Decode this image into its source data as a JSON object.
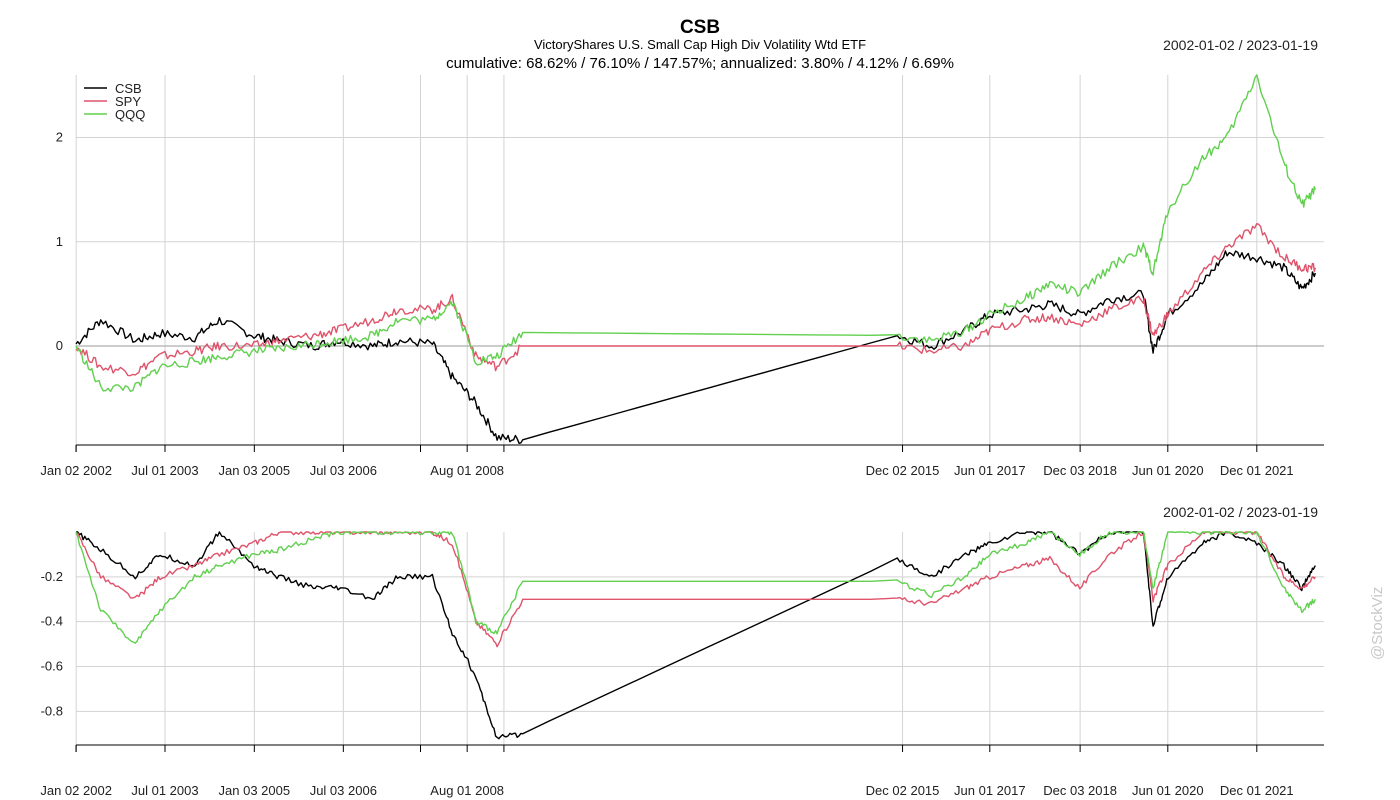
{
  "header": {
    "title": "CSB",
    "subtitle": "VictoryShares U.S. Small Cap High Div Volatility Wtd ETF",
    "stats": "cumulative: 68.62% / 76.10% / 147.57%; annualized: 3.80% / 4.12% / 6.69%",
    "date_range_top": "2002-01-02 / 2023-01-19",
    "date_range_bottom": "2002-01-02 / 2023-01-19"
  },
  "watermark": "@StockViz",
  "colors": {
    "CSB": "#000000",
    "SPY": "#df536b",
    "QQQ": "#61d04f",
    "grid": "#d3d3d3",
    "zero": "#9a9a9a"
  },
  "chart_data": [
    {
      "type": "line",
      "title": "CSB",
      "ylim": [
        -0.95,
        2.6
      ],
      "yticks": [
        0,
        1,
        2
      ],
      "grid": true,
      "legend_position": "top-left",
      "xtick_labels": [
        "Jan 02 2002",
        "Jul 01 2003",
        "Jan 03 2005",
        "Jul 03 2006",
        "Aug 01 2008",
        "Dec 02 2015",
        "Jun 01 2017",
        "Dec 03 2018",
        "Jun 01 2020",
        "Dec 01 2021"
      ],
      "x": [
        "2002-01",
        "2002-06",
        "2003-01",
        "2003-06",
        "2004-01",
        "2004-06",
        "2005-01",
        "2005-06",
        "2006-01",
        "2006-06",
        "2007-01",
        "2007-06",
        "2008-01",
        "2008-05",
        "2008-10",
        "2009-03",
        "2009-09",
        "2015-11",
        "2016-06",
        "2017-01",
        "2017-06",
        "2018-01",
        "2018-06",
        "2018-12",
        "2019-06",
        "2020-01",
        "2020-03",
        "2020-06",
        "2021-01",
        "2021-06",
        "2021-12",
        "2022-06",
        "2022-10",
        "2023-01"
      ],
      "series": [
        {
          "name": "CSB",
          "values": [
            0.02,
            0.25,
            0.05,
            0.12,
            0.08,
            0.25,
            0.1,
            0.05,
            0.0,
            0.05,
            0.0,
            0.05,
            0.02,
            -0.3,
            -0.55,
            -0.88,
            -0.9,
            0.1,
            0.0,
            0.15,
            0.3,
            0.35,
            0.4,
            0.3,
            0.45,
            0.5,
            -0.05,
            0.3,
            0.6,
            0.9,
            0.85,
            0.75,
            0.55,
            0.7
          ]
        },
        {
          "name": "SPY",
          "values": [
            0.0,
            -0.2,
            -0.25,
            -0.1,
            -0.05,
            0.0,
            0.0,
            0.05,
            0.1,
            0.15,
            0.25,
            0.35,
            0.35,
            0.45,
            -0.1,
            -0.2,
            0.0,
            0.0,
            -0.05,
            0.0,
            0.15,
            0.25,
            0.28,
            0.2,
            0.35,
            0.45,
            0.1,
            0.3,
            0.7,
            0.95,
            1.15,
            0.85,
            0.75,
            0.75
          ]
        },
        {
          "name": "QQQ",
          "values": [
            0.0,
            -0.4,
            -0.4,
            -0.2,
            -0.15,
            -0.1,
            -0.05,
            -0.03,
            0.02,
            0.05,
            0.1,
            0.25,
            0.25,
            0.43,
            -0.15,
            -0.1,
            0.13,
            0.1,
            0.05,
            0.15,
            0.3,
            0.45,
            0.6,
            0.5,
            0.75,
            0.95,
            0.7,
            1.3,
            1.8,
            2.0,
            2.6,
            1.75,
            1.35,
            1.5
          ]
        }
      ]
    },
    {
      "type": "line",
      "title": "",
      "ylim": [
        -0.95,
        0.0
      ],
      "yticks": [
        -0.2,
        -0.4,
        -0.6,
        -0.8
      ],
      "ytick_labels": [
        "-0.2",
        "-0.4",
        "-0.6",
        "-0.8"
      ],
      "grid": true,
      "xtick_labels": [
        "Jan 02 2002",
        "Jul 01 2003",
        "Jan 03 2005",
        "Jul 03 2006",
        "Aug 01 2008",
        "Dec 02 2015",
        "Jun 01 2017",
        "Dec 03 2018",
        "Jun 01 2020",
        "Dec 01 2021"
      ],
      "x": [
        "2002-01",
        "2002-06",
        "2003-01",
        "2003-06",
        "2004-01",
        "2004-06",
        "2005-01",
        "2005-06",
        "2006-01",
        "2006-06",
        "2007-01",
        "2007-06",
        "2008-01",
        "2008-05",
        "2008-10",
        "2009-03",
        "2009-09",
        "2015-11",
        "2016-06",
        "2017-01",
        "2017-06",
        "2018-01",
        "2018-06",
        "2018-12",
        "2019-06",
        "2020-01",
        "2020-03",
        "2020-06",
        "2021-01",
        "2021-06",
        "2021-12",
        "2022-06",
        "2022-10",
        "2023-01"
      ],
      "series": [
        {
          "name": "CSB",
          "values": [
            0.0,
            -0.08,
            -0.2,
            -0.1,
            -0.15,
            0.0,
            -0.15,
            -0.2,
            -0.25,
            -0.25,
            -0.3,
            -0.2,
            -0.2,
            -0.45,
            -0.65,
            -0.92,
            -0.9,
            -0.12,
            -0.2,
            -0.1,
            -0.05,
            0.0,
            0.0,
            -0.1,
            0.0,
            0.0,
            -0.42,
            -0.2,
            -0.05,
            0.0,
            -0.05,
            -0.15,
            -0.25,
            -0.15
          ]
        },
        {
          "name": "SPY",
          "values": [
            0.0,
            -0.2,
            -0.3,
            -0.2,
            -0.15,
            -0.1,
            -0.05,
            0.0,
            0.0,
            0.0,
            0.0,
            0.0,
            0.0,
            -0.05,
            -0.4,
            -0.5,
            -0.3,
            -0.3,
            -0.32,
            -0.25,
            -0.2,
            -0.15,
            -0.12,
            -0.25,
            -0.1,
            0.0,
            -0.3,
            -0.15,
            0.0,
            0.0,
            0.0,
            -0.2,
            -0.25,
            -0.2
          ]
        },
        {
          "name": "QQQ",
          "values": [
            0.0,
            -0.35,
            -0.5,
            -0.35,
            -0.2,
            -0.15,
            -0.1,
            -0.08,
            -0.03,
            0.0,
            0.0,
            0.0,
            0.0,
            0.0,
            -0.4,
            -0.45,
            -0.22,
            -0.22,
            -0.28,
            -0.2,
            -0.1,
            -0.05,
            0.0,
            -0.1,
            0.0,
            0.0,
            -0.25,
            0.0,
            0.0,
            0.0,
            0.0,
            -0.25,
            -0.35,
            -0.3
          ]
        }
      ]
    }
  ]
}
